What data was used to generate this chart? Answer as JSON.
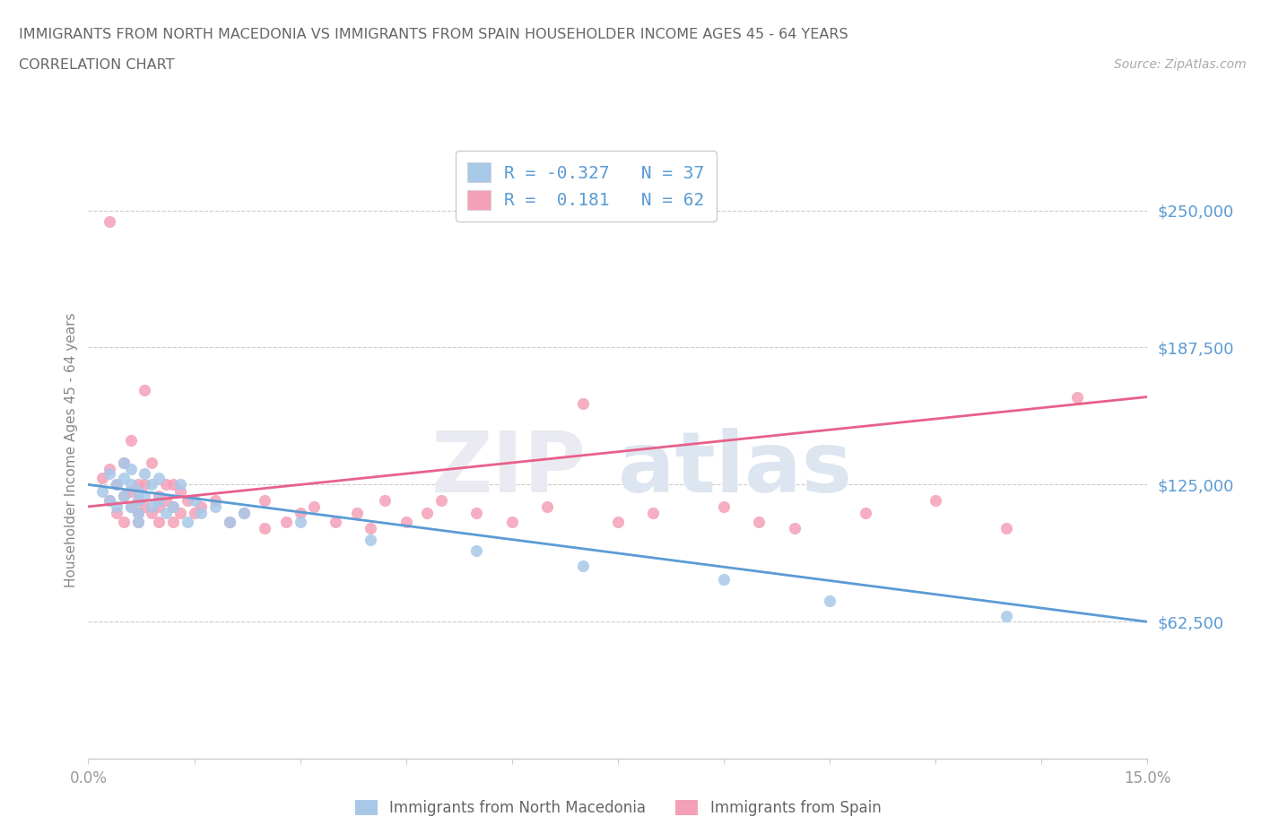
{
  "title_line1": "IMMIGRANTS FROM NORTH MACEDONIA VS IMMIGRANTS FROM SPAIN HOUSEHOLDER INCOME AGES 45 - 64 YEARS",
  "title_line2": "CORRELATION CHART",
  "source_text": "Source: ZipAtlas.com",
  "ylabel": "Householder Income Ages 45 - 64 years",
  "xlim": [
    0.0,
    0.15
  ],
  "ylim": [
    0,
    281250
  ],
  "yticks": [
    62500,
    125000,
    187500,
    250000
  ],
  "ytick_labels": [
    "$62,500",
    "$125,000",
    "$187,500",
    "$250,000"
  ],
  "xticks": [
    0.0,
    0.015,
    0.03,
    0.045,
    0.06,
    0.075,
    0.09,
    0.105,
    0.12,
    0.135,
    0.15
  ],
  "xtick_labels": [
    "0.0%",
    "",
    "",
    "",
    "",
    "",
    "",
    "",
    "",
    "",
    "15.0%"
  ],
  "legend_label1": "Immigrants from North Macedonia",
  "legend_label2": "Immigrants from Spain",
  "color_blue": "#a8c8e8",
  "color_pink": "#f4a0b8",
  "color_blue_line": "#5b9bd5",
  "color_pink_line": "#e8608a",
  "color_text_blue": "#5b9bd5",
  "nm_R": "-0.327",
  "nm_N": "37",
  "sp_R": "0.181",
  "sp_N": "62",
  "nm_x": [
    0.002,
    0.003,
    0.003,
    0.004,
    0.004,
    0.005,
    0.005,
    0.005,
    0.006,
    0.006,
    0.006,
    0.007,
    0.007,
    0.007,
    0.007,
    0.008,
    0.008,
    0.009,
    0.009,
    0.01,
    0.01,
    0.011,
    0.012,
    0.013,
    0.014,
    0.015,
    0.016,
    0.018,
    0.02,
    0.022,
    0.03,
    0.04,
    0.055,
    0.07,
    0.09,
    0.105,
    0.13
  ],
  "nm_y": [
    122000,
    130000,
    118000,
    125000,
    115000,
    135000,
    128000,
    120000,
    132000,
    125000,
    115000,
    122000,
    118000,
    112000,
    108000,
    130000,
    120000,
    125000,
    115000,
    128000,
    118000,
    112000,
    115000,
    125000,
    108000,
    118000,
    112000,
    115000,
    108000,
    112000,
    108000,
    100000,
    95000,
    88000,
    82000,
    72000,
    65000
  ],
  "sp_x": [
    0.002,
    0.003,
    0.003,
    0.004,
    0.004,
    0.005,
    0.005,
    0.005,
    0.006,
    0.006,
    0.006,
    0.007,
    0.007,
    0.007,
    0.007,
    0.008,
    0.008,
    0.008,
    0.009,
    0.009,
    0.01,
    0.01,
    0.01,
    0.011,
    0.011,
    0.012,
    0.012,
    0.012,
    0.013,
    0.013,
    0.014,
    0.015,
    0.016,
    0.018,
    0.02,
    0.022,
    0.025,
    0.025,
    0.028,
    0.03,
    0.032,
    0.035,
    0.038,
    0.04,
    0.042,
    0.045,
    0.048,
    0.05,
    0.055,
    0.06,
    0.065,
    0.07,
    0.075,
    0.08,
    0.09,
    0.095,
    0.1,
    0.11,
    0.12,
    0.13,
    0.14,
    0.003
  ],
  "sp_y": [
    128000,
    132000,
    118000,
    112000,
    125000,
    120000,
    108000,
    135000,
    145000,
    122000,
    115000,
    118000,
    125000,
    112000,
    108000,
    168000,
    115000,
    125000,
    135000,
    112000,
    120000,
    115000,
    108000,
    125000,
    118000,
    115000,
    108000,
    125000,
    112000,
    122000,
    118000,
    112000,
    115000,
    118000,
    108000,
    112000,
    105000,
    118000,
    108000,
    112000,
    115000,
    108000,
    112000,
    105000,
    118000,
    108000,
    112000,
    118000,
    112000,
    108000,
    115000,
    162000,
    108000,
    112000,
    115000,
    108000,
    105000,
    112000,
    118000,
    105000,
    165000,
    245000
  ]
}
